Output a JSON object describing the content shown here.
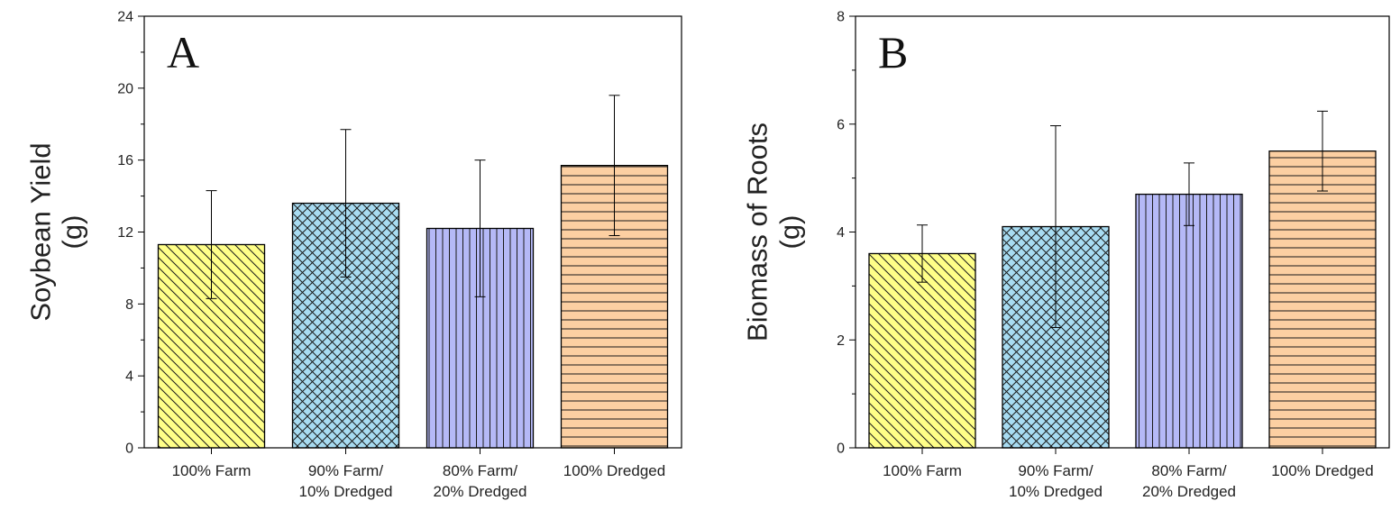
{
  "chart_data": [
    {
      "type": "bar",
      "panel_label": "A",
      "categories": [
        [
          "100% Farm"
        ],
        [
          "90% Farm/",
          "10% Dredged"
        ],
        [
          "80% Farm/",
          "20% Dredged"
        ],
        [
          "100% Dredged"
        ]
      ],
      "values": [
        11.3,
        13.6,
        12.2,
        15.7
      ],
      "error_bars": [
        3.0,
        4.1,
        3.8,
        3.9
      ],
      "ylabel": [
        "Soybean Yield",
        "(g)"
      ],
      "ylim": [
        0,
        24
      ],
      "major_ticks": [
        0,
        4,
        8,
        12,
        16,
        20,
        24
      ],
      "minor_tick_step": 2,
      "bar_colors": [
        "#ffff88",
        "#a8dcf2",
        "#b5b9f7",
        "#fccfa2"
      ],
      "patterns": [
        "diagonal",
        "crosshatch",
        "vertical",
        "horizontal"
      ]
    },
    {
      "type": "bar",
      "panel_label": "B",
      "categories": [
        [
          "100% Farm"
        ],
        [
          "90% Farm/",
          "10% Dredged"
        ],
        [
          "80% Farm/",
          "20% Dredged"
        ],
        [
          "100% Dredged"
        ]
      ],
      "values": [
        3.6,
        4.1,
        4.7,
        5.5
      ],
      "error_bars": [
        0.53,
        1.87,
        0.58,
        0.74
      ],
      "ylabel": [
        "Biomass of Roots",
        "(g)"
      ],
      "ylim": [
        0,
        8
      ],
      "major_ticks": [
        0,
        2,
        4,
        6,
        8
      ],
      "minor_tick_step": 1,
      "bar_colors": [
        "#ffff88",
        "#a8dcf2",
        "#b5b9f7",
        "#fccfa2"
      ],
      "patterns": [
        "diagonal",
        "crosshatch",
        "vertical",
        "horizontal"
      ]
    }
  ]
}
